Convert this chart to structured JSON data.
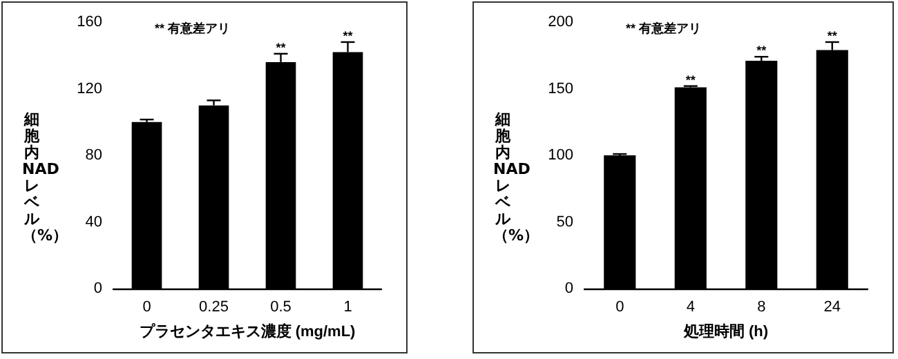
{
  "chart_data": [
    {
      "type": "bar",
      "xlabel": "プラセンタエキス濃度 (mg/mL)",
      "ylabel": "細胞内NADレベル（%）",
      "categories": [
        "0",
        "0.25",
        "0.5",
        "1"
      ],
      "values": [
        100,
        110,
        136,
        142
      ],
      "errors": [
        1.5,
        3,
        5,
        6
      ],
      "color": "#000000",
      "ylim": [
        0,
        160
      ],
      "yticks": [
        0,
        40,
        80,
        120,
        160
      ],
      "annotations": [
        "** 有意差アリ",
        {
          "text": "**",
          "x": "0.5",
          "y": 141
        },
        {
          "text": "**",
          "x": "1",
          "y": 148
        }
      ]
    },
    {
      "type": "bar",
      "xlabel": "処理時間 (h)",
      "ylabel": "細胞内NADレベル（%）",
      "categories": [
        "0",
        "4",
        "8",
        "24"
      ],
      "values": [
        100,
        151,
        171,
        179
      ],
      "errors": [
        1,
        1,
        3,
        6
      ],
      "color": "#000000",
      "ylim": [
        0,
        200
      ],
      "yticks": [
        0,
        50,
        100,
        150,
        200
      ],
      "annotations": [
        "** 有意差アリ",
        {
          "text": "**",
          "x": "4",
          "y": 152
        },
        {
          "text": "**",
          "x": "8",
          "y": 174
        },
        {
          "text": "**",
          "x": "24",
          "y": 185
        }
      ]
    }
  ]
}
